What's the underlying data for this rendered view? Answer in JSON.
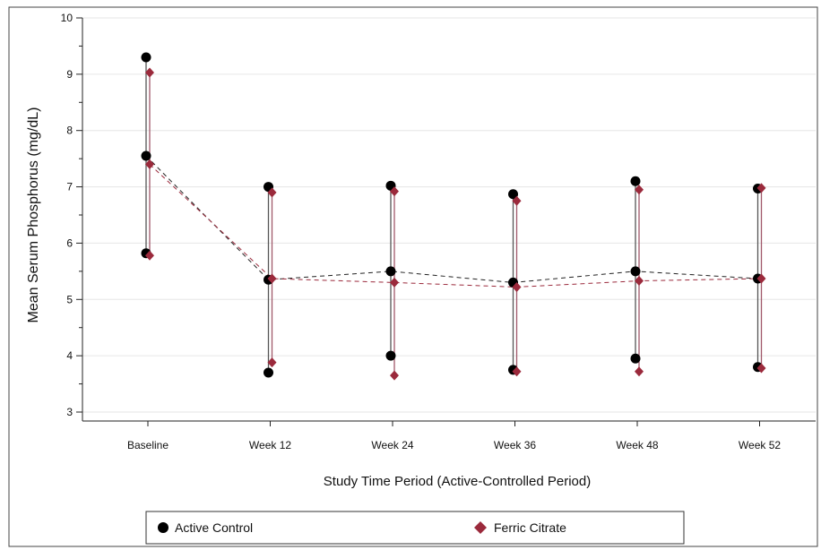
{
  "chart_data": {
    "type": "scatter",
    "title": "",
    "xlabel": "Study Time Period (Active-Controlled Period)",
    "ylabel": "Mean Serum Phosphorus (mg/dL)",
    "ylim": [
      3,
      10
    ],
    "yticks": [
      3,
      4,
      5,
      6,
      7,
      8,
      9,
      10
    ],
    "categories": [
      "Baseline",
      "Week 12",
      "Week 24",
      "Week 36",
      "Week 48",
      "Week 52"
    ],
    "grid": "horizontal",
    "legend_position": "bottom",
    "series": [
      {
        "name": "Active Control",
        "marker": "circle",
        "color": "#000000",
        "mean": [
          7.55,
          5.35,
          5.5,
          5.3,
          5.5,
          5.37
        ],
        "upper": [
          9.3,
          7.0,
          7.02,
          6.87,
          7.1,
          6.97
        ],
        "lower": [
          5.82,
          3.7,
          4.0,
          3.75,
          3.95,
          3.8
        ]
      },
      {
        "name": "Ferric Citrate",
        "marker": "diamond",
        "color": "#9b2a3c",
        "mean": [
          7.4,
          5.37,
          5.3,
          5.22,
          5.33,
          5.37
        ],
        "upper": [
          9.03,
          6.9,
          6.92,
          6.75,
          6.95,
          6.98
        ],
        "lower": [
          5.78,
          3.88,
          3.65,
          3.72,
          3.72,
          3.78
        ]
      }
    ]
  }
}
